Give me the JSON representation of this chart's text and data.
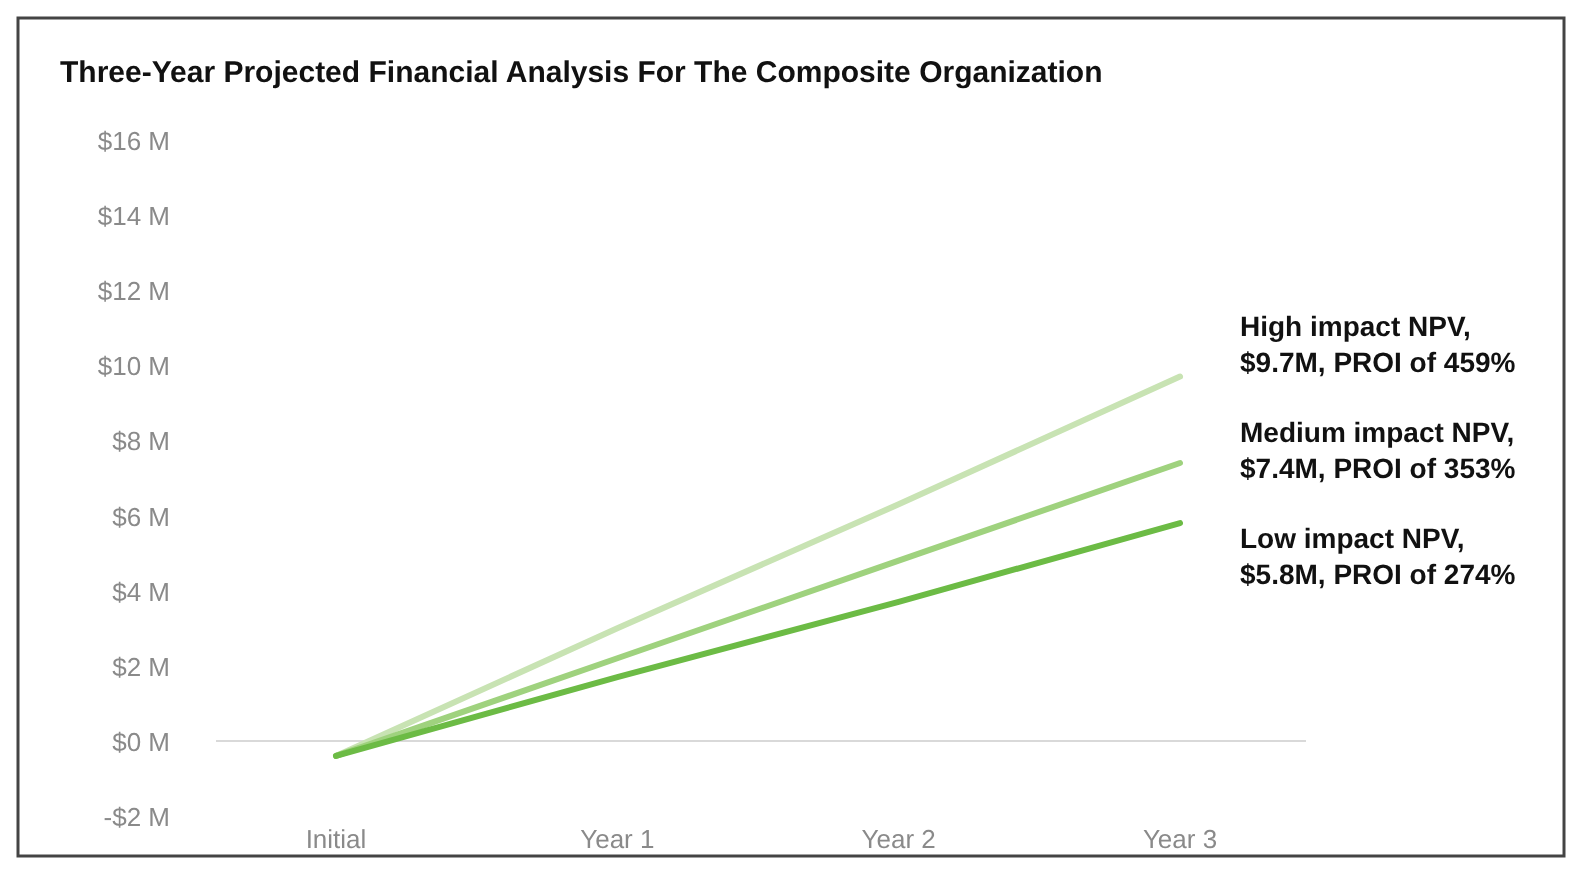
{
  "chart_data": {
    "type": "line",
    "title": "Three-Year Projected Financial Analysis For The Composite Organization",
    "categories": [
      "Initial",
      "Year 1",
      "Year 2",
      "Year 3"
    ],
    "series": [
      {
        "name": "High impact NPV, $9.7M, PROI of 459%",
        "color": "#c8e3b3",
        "values": [
          -0.4,
          3.0,
          6.3,
          9.7
        ]
      },
      {
        "name": "Medium impact NPV, $7.4M, PROI of 353%",
        "color": "#9fd27e",
        "values": [
          -0.4,
          2.2,
          4.8,
          7.4
        ]
      },
      {
        "name": "Low impact NPV, $5.8M, PROI of 274%",
        "color": "#6cbb45",
        "values": [
          -0.4,
          1.7,
          3.7,
          5.8
        ]
      }
    ],
    "ylim": [
      -2,
      16
    ],
    "yticks": [
      {
        "value": -2,
        "label": "-$2 M"
      },
      {
        "value": 0,
        "label": "$0 M"
      },
      {
        "value": 2,
        "label": "$2 M"
      },
      {
        "value": 4,
        "label": "$4 M"
      },
      {
        "value": 6,
        "label": "$6 M"
      },
      {
        "value": 8,
        "label": "$8 M"
      },
      {
        "value": 10,
        "label": "$10 M"
      },
      {
        "value": 12,
        "label": "$12 M"
      },
      {
        "value": 14,
        "label": "$14 M"
      },
      {
        "value": 16,
        "label": "$16 M"
      }
    ],
    "ref_lines": [
      {
        "axis": "y",
        "value": 0,
        "color": "#d9d9d9"
      }
    ],
    "marker": "none",
    "line_style": "solid"
  }
}
